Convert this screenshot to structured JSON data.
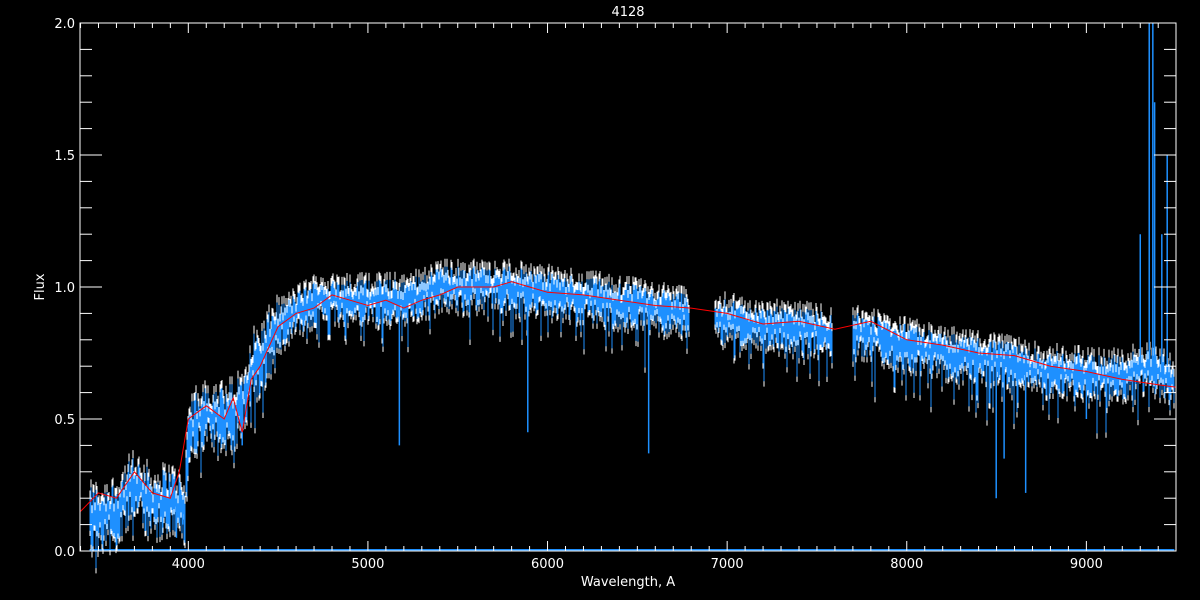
{
  "chart_data": {
    "type": "line",
    "title": "4128",
    "xlabel": "Wavelength, A",
    "ylabel": "Flux",
    "xlim": [
      3397,
      9499
    ],
    "ylim": [
      0.0,
      2.0
    ],
    "grid": false,
    "background": "#000000",
    "x_ticks": [
      4000,
      5000,
      6000,
      7000,
      8000,
      9000
    ],
    "y_ticks": [
      "0.0",
      "0.5",
      "1.0",
      "1.5",
      "2.0"
    ],
    "series": [
      {
        "color": "#1e90ff",
        "segments": [
          [
            3450,
            6790
          ],
          [
            6930,
            7585
          ],
          [
            7700,
            9490
          ]
        ],
        "x": [
          3450,
          3600,
          3700,
          3800,
          3900,
          3980,
          4000,
          4100,
          4200,
          4300,
          4350,
          4400,
          4500,
          4600,
          4700,
          4800,
          5000,
          5200,
          5400,
          5600,
          5800,
          6000,
          6200,
          6500,
          6790,
          6930,
          7200,
          7585,
          7700,
          8000,
          8200,
          8500,
          8800,
          9000,
          9200,
          9300,
          9490
        ],
        "y": [
          0.12,
          0.15,
          0.25,
          0.18,
          0.2,
          0.15,
          0.45,
          0.52,
          0.5,
          0.55,
          0.7,
          0.72,
          0.85,
          0.9,
          0.95,
          0.95,
          0.95,
          0.95,
          1.0,
          1.0,
          1.0,
          0.98,
          0.96,
          0.93,
          0.9,
          0.88,
          0.85,
          0.83,
          0.83,
          0.78,
          0.75,
          0.72,
          0.68,
          0.67,
          0.66,
          0.7,
          0.65
        ],
        "absorption_lines": [
          [
            3934,
            0.05
          ],
          [
            3968,
            0.1
          ],
          [
            4300,
            0.4
          ],
          [
            5175,
            0.4
          ],
          [
            5890,
            0.45
          ],
          [
            6563,
            0.37
          ],
          [
            8498,
            0.2
          ],
          [
            8542,
            0.35
          ],
          [
            8662,
            0.22
          ],
          [
            9000,
            0.5
          ]
        ],
        "emission_lines": [
          [
            9300,
            1.2
          ],
          [
            9350,
            2.0
          ],
          [
            9370,
            2.0
          ],
          [
            9380,
            1.7
          ],
          [
            9420,
            1.2
          ],
          [
            9450,
            1.5
          ]
        ]
      },
      {
        "color": "#ff0000",
        "x": [
          3400,
          3500,
          3600,
          3700,
          3800,
          3900,
          3950,
          4000,
          4100,
          4200,
          4250,
          4300,
          4350,
          4400,
          4500,
          4600,
          4700,
          4800,
          4900,
          5000,
          5100,
          5200,
          5300,
          5400,
          5500,
          5600,
          5700,
          5800,
          5900,
          6000,
          6200,
          6400,
          6600,
          6800,
          7000,
          7200,
          7400,
          7600,
          7800,
          8000,
          8200,
          8400,
          8600,
          8800,
          9000,
          9200,
          9400,
          9500
        ],
        "y": [
          0.15,
          0.22,
          0.2,
          0.3,
          0.22,
          0.2,
          0.3,
          0.5,
          0.55,
          0.5,
          0.58,
          0.45,
          0.65,
          0.7,
          0.85,
          0.9,
          0.92,
          0.97,
          0.95,
          0.93,
          0.95,
          0.92,
          0.95,
          0.97,
          1.0,
          1.0,
          1.0,
          1.02,
          1.0,
          0.98,
          0.97,
          0.95,
          0.93,
          0.92,
          0.9,
          0.86,
          0.87,
          0.84,
          0.87,
          0.8,
          0.78,
          0.75,
          0.74,
          0.7,
          0.68,
          0.65,
          0.63,
          0.62
        ]
      }
    ]
  }
}
